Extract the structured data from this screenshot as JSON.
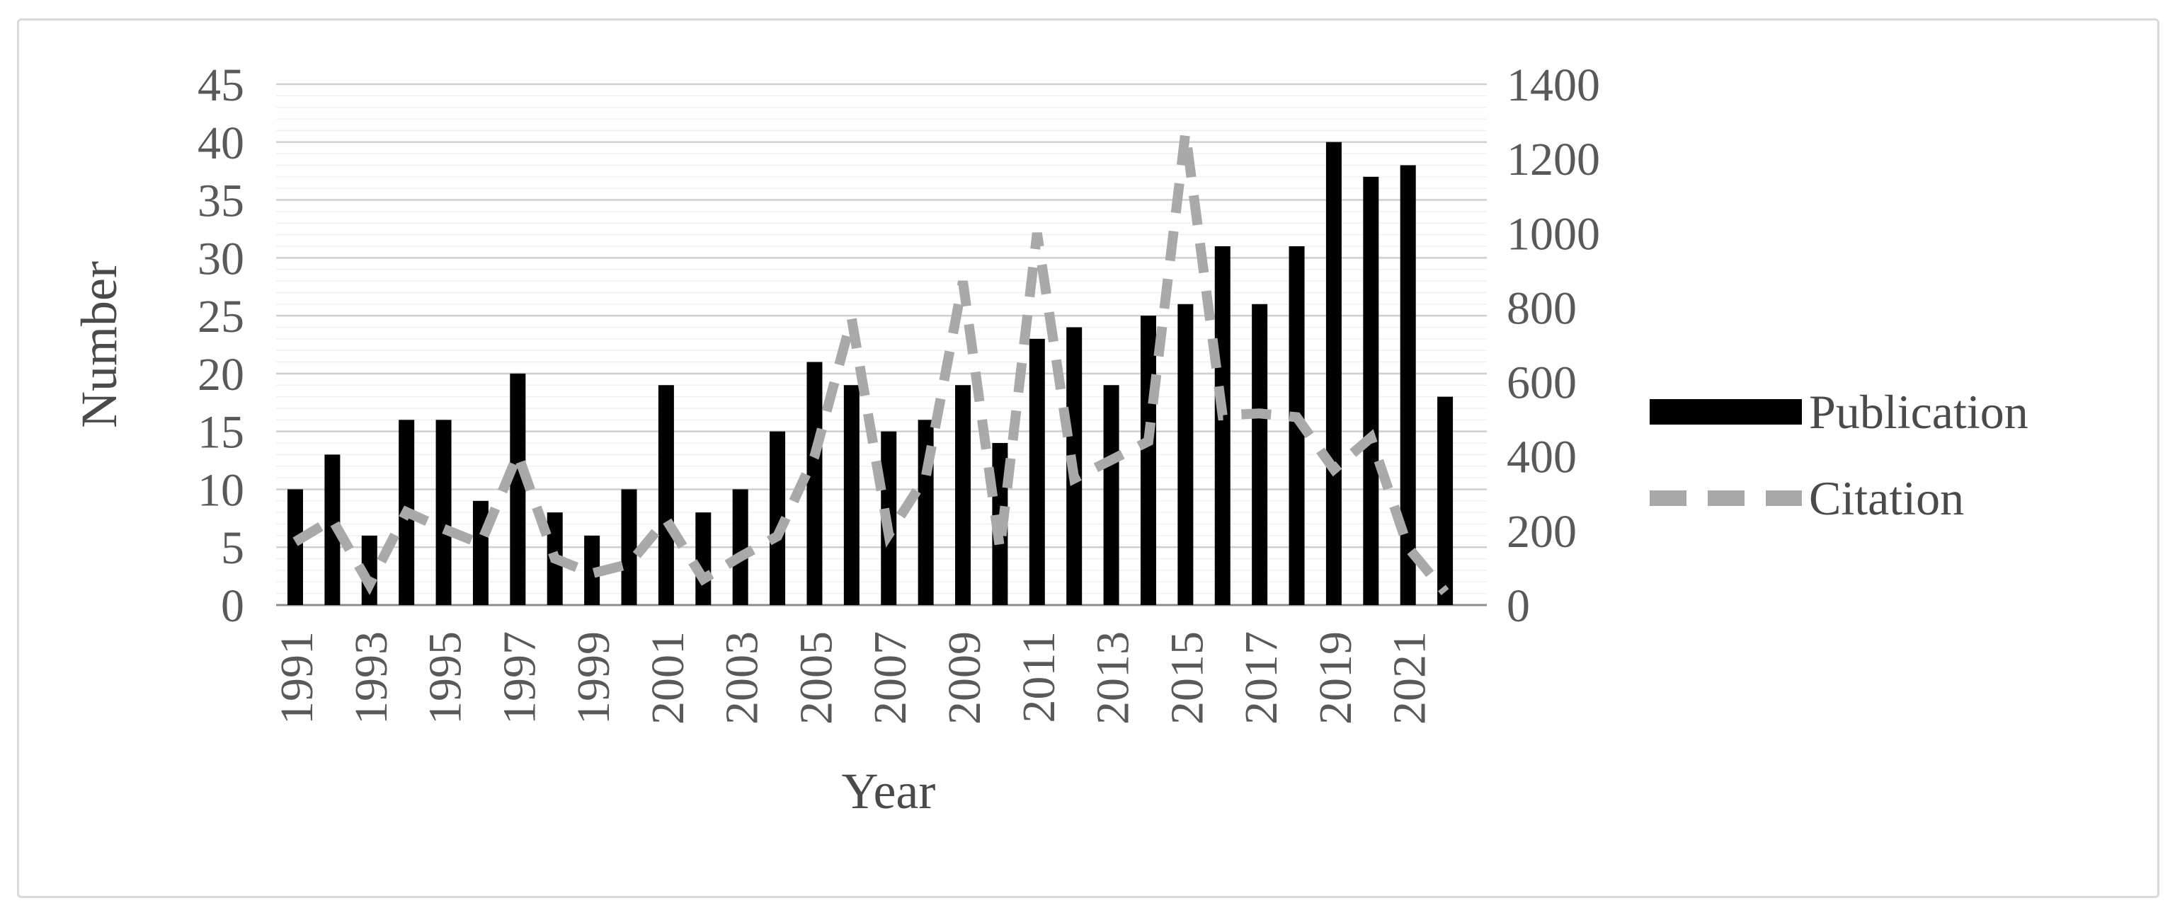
{
  "figure": {
    "y_axis_title": "Number",
    "x_axis_title": "Year",
    "legend": {
      "publication_label": "Publication",
      "citation_label": "Citation"
    },
    "colors": {
      "bar": "#010101",
      "line": "#a9a9a9",
      "tick_text": "#595959",
      "title_text": "#4a4a4a",
      "grid_minor": "#f0f0f0",
      "grid_major": "#cfcfcf",
      "axis_baseline": "#8c8c8c",
      "frame_border": "#d9d9d9",
      "background": "#ffffff"
    }
  },
  "chart_data": {
    "type": "combo-bar-line",
    "categories": [
      1991,
      1992,
      1993,
      1994,
      1995,
      1996,
      1997,
      1998,
      1999,
      2000,
      2001,
      2002,
      2003,
      2004,
      2005,
      2006,
      2007,
      2008,
      2009,
      2010,
      2011,
      2012,
      2013,
      2014,
      2015,
      2016,
      2017,
      2018,
      2019,
      2020,
      2021,
      2022
    ],
    "series": [
      {
        "name": "Publication",
        "type": "bar",
        "axis": "left",
        "values": [
          10,
          13,
          6,
          16,
          16,
          9,
          20,
          8,
          6,
          10,
          19,
          8,
          10,
          15,
          21,
          19,
          15,
          16,
          19,
          14,
          23,
          24,
          19,
          25,
          26,
          31,
          26,
          31,
          40,
          37,
          38,
          18
        ]
      },
      {
        "name": "Citation",
        "type": "line",
        "dashed": true,
        "axis": "right",
        "values": [
          170,
          230,
          55,
          250,
          205,
          165,
          405,
          125,
          85,
          110,
          230,
          70,
          130,
          185,
          400,
          770,
          190,
          345,
          870,
          150,
          1000,
          340,
          390,
          440,
          1270,
          510,
          515,
          505,
          365,
          450,
          155,
          35
        ]
      }
    ],
    "left_axis": {
      "label": "Number",
      "range": [
        0,
        45
      ],
      "ticks": [
        0,
        5,
        10,
        15,
        20,
        25,
        30,
        35,
        40,
        45
      ],
      "tick_labels": [
        "0",
        "5",
        "10",
        "15",
        "20",
        "25",
        "30",
        "35",
        "40",
        "45"
      ]
    },
    "right_axis": {
      "label": "",
      "range": [
        0,
        1400
      ],
      "ticks": [
        0,
        200,
        400,
        600,
        800,
        1000,
        1200,
        1400
      ],
      "tick_labels": [
        "0",
        "200",
        "400",
        "600",
        "800",
        "1000",
        "1200",
        "1400"
      ]
    },
    "x_axis": {
      "label": "Year",
      "shown_tick_labels": [
        "1991",
        "1993",
        "1995",
        "1997",
        "1999",
        "2001",
        "2003",
        "2005",
        "2007",
        "2009",
        "2011",
        "2013",
        "2015",
        "2017",
        "2019",
        "2021"
      ]
    },
    "grid": "horizontal, minor every 1 unit, major every 5 units",
    "legend_position": "right",
    "legend_entries": [
      "Publication",
      "Citation"
    ]
  }
}
